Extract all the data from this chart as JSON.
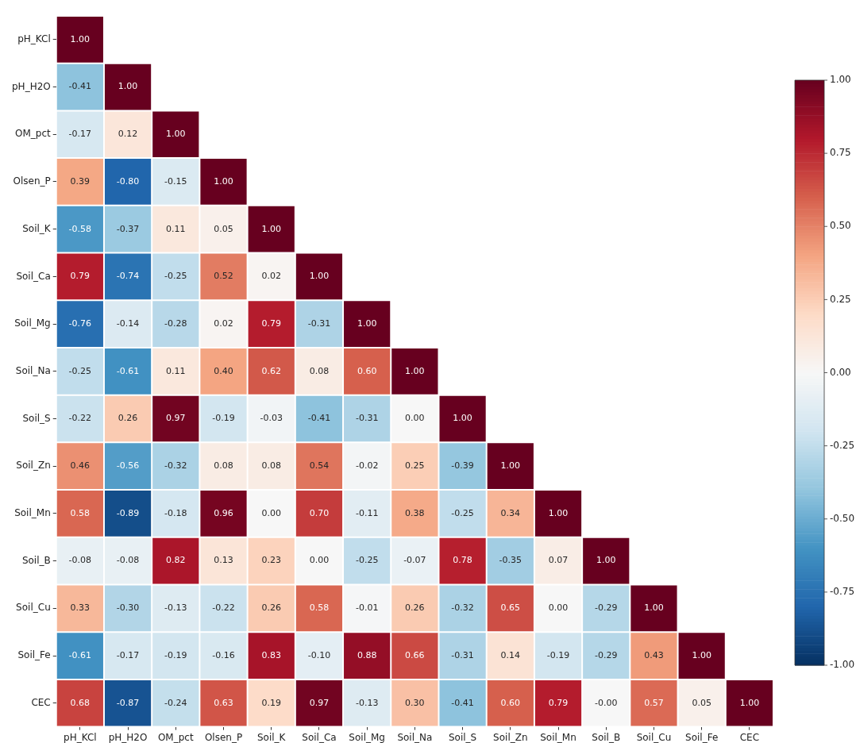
{
  "chart_data": {
    "type": "heatmap",
    "categories": [
      "pH_KCl",
      "pH_H2O",
      "OM_pct",
      "Olsen_P",
      "Soil_K",
      "Soil_Ca",
      "Soil_Mg",
      "Soil_Na",
      "Soil_S",
      "Soil_Zn",
      "Soil_Mn",
      "Soil_B",
      "Soil_Cu",
      "Soil_Fe",
      "CEC"
    ],
    "y_categories": [
      "pH_KCl",
      "pH_H2O",
      "OM_pct",
      "Olsen_P",
      "Soil_K",
      "Soil_Ca",
      "Soil_Mg",
      "Soil_Na",
      "Soil_S",
      "Soil_Zn",
      "Soil_Mn",
      "Soil_B",
      "Soil_Cu",
      "Soil_Fe",
      "CEC"
    ],
    "cells": [
      [
        1.0,
        null,
        null,
        null,
        null,
        null,
        null,
        null,
        null,
        null,
        null,
        null,
        null,
        null,
        null
      ],
      [
        -0.41,
        1.0,
        null,
        null,
        null,
        null,
        null,
        null,
        null,
        null,
        null,
        null,
        null,
        null,
        null
      ],
      [
        -0.17,
        0.12,
        1.0,
        null,
        null,
        null,
        null,
        null,
        null,
        null,
        null,
        null,
        null,
        null,
        null
      ],
      [
        0.39,
        -0.8,
        -0.15,
        1.0,
        null,
        null,
        null,
        null,
        null,
        null,
        null,
        null,
        null,
        null,
        null
      ],
      [
        -0.58,
        -0.37,
        0.11,
        0.05,
        1.0,
        null,
        null,
        null,
        null,
        null,
        null,
        null,
        null,
        null,
        null
      ],
      [
        0.79,
        -0.74,
        -0.25,
        0.52,
        0.02,
        1.0,
        null,
        null,
        null,
        null,
        null,
        null,
        null,
        null,
        null
      ],
      [
        -0.76,
        -0.14,
        -0.28,
        0.02,
        0.79,
        -0.31,
        1.0,
        null,
        null,
        null,
        null,
        null,
        null,
        null,
        null
      ],
      [
        -0.25,
        -0.61,
        0.11,
        0.4,
        0.62,
        0.08,
        0.6,
        1.0,
        null,
        null,
        null,
        null,
        null,
        null,
        null
      ],
      [
        -0.22,
        0.26,
        0.97,
        -0.19,
        -0.03,
        -0.41,
        -0.31,
        0.0,
        1.0,
        null,
        null,
        null,
        null,
        null,
        null
      ],
      [
        0.46,
        -0.56,
        -0.32,
        0.08,
        0.08,
        0.54,
        -0.02,
        0.25,
        -0.39,
        1.0,
        null,
        null,
        null,
        null,
        null
      ],
      [
        0.58,
        -0.89,
        -0.18,
        0.96,
        0.0,
        0.7,
        -0.11,
        0.38,
        -0.25,
        0.34,
        1.0,
        null,
        null,
        null,
        null
      ],
      [
        -0.08,
        -0.08,
        0.82,
        0.13,
        0.23,
        0.0,
        -0.25,
        -0.07,
        0.78,
        -0.35,
        0.07,
        1.0,
        null,
        null,
        null
      ],
      [
        0.33,
        -0.3,
        -0.13,
        -0.22,
        0.26,
        0.58,
        -0.01,
        0.26,
        -0.32,
        0.65,
        0.0,
        -0.29,
        1.0,
        null,
        null
      ],
      [
        -0.61,
        -0.17,
        -0.19,
        -0.16,
        0.83,
        -0.1,
        0.88,
        0.66,
        -0.31,
        0.14,
        -0.19,
        -0.29,
        0.43,
        1.0,
        null
      ],
      [
        0.68,
        -0.87,
        -0.24,
        0.63,
        0.19,
        0.97,
        -0.13,
        0.3,
        -0.41,
        0.6,
        0.79,
        0.0,
        0.57,
        0.05,
        1.0
      ]
    ],
    "cell_labels": [
      [
        "1.00",
        null,
        null,
        null,
        null,
        null,
        null,
        null,
        null,
        null,
        null,
        null,
        null,
        null,
        null
      ],
      [
        "-0.41",
        "1.00",
        null,
        null,
        null,
        null,
        null,
        null,
        null,
        null,
        null,
        null,
        null,
        null,
        null
      ],
      [
        "-0.17",
        "0.12",
        "1.00",
        null,
        null,
        null,
        null,
        null,
        null,
        null,
        null,
        null,
        null,
        null,
        null
      ],
      [
        "0.39",
        "-0.80",
        "-0.15",
        "1.00",
        null,
        null,
        null,
        null,
        null,
        null,
        null,
        null,
        null,
        null,
        null
      ],
      [
        "-0.58",
        "-0.37",
        "0.11",
        "0.05",
        "1.00",
        null,
        null,
        null,
        null,
        null,
        null,
        null,
        null,
        null,
        null
      ],
      [
        "0.79",
        "-0.74",
        "-0.25",
        "0.52",
        "0.02",
        "1.00",
        null,
        null,
        null,
        null,
        null,
        null,
        null,
        null,
        null
      ],
      [
        "-0.76",
        "-0.14",
        "-0.28",
        "0.02",
        "0.79",
        "-0.31",
        "1.00",
        null,
        null,
        null,
        null,
        null,
        null,
        null,
        null
      ],
      [
        "-0.25",
        "-0.61",
        "0.11",
        "0.40",
        "0.62",
        "0.08",
        "0.60",
        "1.00",
        null,
        null,
        null,
        null,
        null,
        null,
        null
      ],
      [
        "-0.22",
        "0.26",
        "0.97",
        "-0.19",
        "-0.03",
        "-0.41",
        "-0.31",
        "0.00",
        "1.00",
        null,
        null,
        null,
        null,
        null,
        null
      ],
      [
        "0.46",
        "-0.56",
        "-0.32",
        "0.08",
        "0.08",
        "0.54",
        "-0.02",
        "0.25",
        "-0.39",
        "1.00",
        null,
        null,
        null,
        null,
        null
      ],
      [
        "0.58",
        "-0.89",
        "-0.18",
        "0.96",
        "0.00",
        "0.70",
        "-0.11",
        "0.38",
        "-0.25",
        "0.34",
        "1.00",
        null,
        null,
        null,
        null
      ],
      [
        "-0.08",
        "-0.08",
        "0.82",
        "0.13",
        "0.23",
        "0.00",
        "-0.25",
        "-0.07",
        "0.78",
        "-0.35",
        "0.07",
        "1.00",
        null,
        null,
        null
      ],
      [
        "0.33",
        "-0.30",
        "-0.13",
        "-0.22",
        "0.26",
        "0.58",
        "-0.01",
        "0.26",
        "-0.32",
        "0.65",
        "0.00",
        "-0.29",
        "1.00",
        null,
        null
      ],
      [
        "-0.61",
        "-0.17",
        "-0.19",
        "-0.16",
        "0.83",
        "-0.10",
        "0.88",
        "0.66",
        "-0.31",
        "0.14",
        "-0.19",
        "-0.29",
        "0.43",
        "1.00",
        null
      ],
      [
        "0.68",
        "-0.87",
        "-0.24",
        "0.63",
        "0.19",
        "0.97",
        "-0.13",
        "0.30",
        "-0.41",
        "0.60",
        "0.79",
        "-0.00",
        "0.57",
        "0.05",
        "1.00"
      ]
    ],
    "clim": [
      -1,
      1
    ],
    "cticks": [
      {
        "value": -1,
        "label": "-1.00"
      },
      {
        "value": -0.75,
        "label": "-0.75"
      },
      {
        "value": -0.5,
        "label": "-0.50"
      },
      {
        "value": -0.25,
        "label": "-0.25"
      },
      {
        "value": 0,
        "label": "0.00"
      },
      {
        "value": 0.25,
        "label": "0.25"
      },
      {
        "value": 0.5,
        "label": "0.50"
      },
      {
        "value": 0.75,
        "label": "0.75"
      },
      {
        "value": 1,
        "label": "1.00"
      }
    ]
  }
}
